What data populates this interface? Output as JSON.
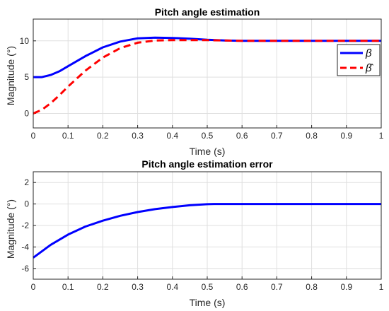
{
  "chart_data": [
    {
      "type": "line",
      "title": "Pitch angle estimation",
      "xlabel": "Time (s)",
      "ylabel": "Magnitude (°)",
      "xlim": [
        0,
        1
      ],
      "ylim": [
        -2,
        13
      ],
      "xticks": [
        "0",
        "0.1",
        "0.2",
        "0.3",
        "0.4",
        "0.5",
        "0.6",
        "0.7",
        "0.8",
        "0.9",
        "1"
      ],
      "yticks": [
        "0",
        "5",
        "10"
      ],
      "grid": true,
      "legend_position": "right",
      "series": [
        {
          "name": "β",
          "color": "#0000ff",
          "style": "solid",
          "x": [
            0,
            0.025,
            0.05,
            0.075,
            0.1,
            0.15,
            0.2,
            0.25,
            0.3,
            0.35,
            0.4,
            0.45,
            0.5,
            0.55,
            0.6,
            0.7,
            0.8,
            0.9,
            1.0
          ],
          "y": [
            5.0,
            5.0,
            5.3,
            5.8,
            6.5,
            7.9,
            9.1,
            9.9,
            10.35,
            10.45,
            10.4,
            10.3,
            10.15,
            10.05,
            10.0,
            10.0,
            10.0,
            10.0,
            10.0
          ]
        },
        {
          "name": "β̂",
          "color": "#ff0000",
          "style": "dashed",
          "x": [
            0,
            0.025,
            0.05,
            0.075,
            0.1,
            0.15,
            0.2,
            0.25,
            0.3,
            0.35,
            0.4,
            0.45,
            0.5,
            0.55,
            0.6,
            0.7,
            0.8,
            0.9,
            1.0
          ],
          "y": [
            0.0,
            0.5,
            1.4,
            2.5,
            3.7,
            5.9,
            7.7,
            9.0,
            9.75,
            10.05,
            10.1,
            10.1,
            10.1,
            10.05,
            10.0,
            10.0,
            10.0,
            10.0,
            10.0
          ]
        }
      ]
    },
    {
      "type": "line",
      "title": "Pitch angle estimation error",
      "xlabel": "Time (s)",
      "ylabel": "Magnitude (°)",
      "xlim": [
        0,
        1
      ],
      "ylim": [
        -7,
        3
      ],
      "xticks": [
        "0",
        "0.1",
        "0.2",
        "0.3",
        "0.4",
        "0.5",
        "0.6",
        "0.7",
        "0.8",
        "0.9",
        "1"
      ],
      "yticks": [
        "-6",
        "-4",
        "-2",
        "0",
        "2"
      ],
      "grid": true,
      "series": [
        {
          "color": "#0000ff",
          "style": "solid",
          "x": [
            0,
            0.05,
            0.1,
            0.15,
            0.2,
            0.25,
            0.3,
            0.35,
            0.4,
            0.45,
            0.5,
            0.52,
            0.6,
            0.7,
            0.8,
            0.9,
            1.0
          ],
          "y": [
            -5.0,
            -3.8,
            -2.85,
            -2.1,
            -1.55,
            -1.1,
            -0.75,
            -0.48,
            -0.28,
            -0.12,
            -0.02,
            0.0,
            0.0,
            0.0,
            0.0,
            0.0,
            0.0
          ]
        }
      ]
    }
  ]
}
